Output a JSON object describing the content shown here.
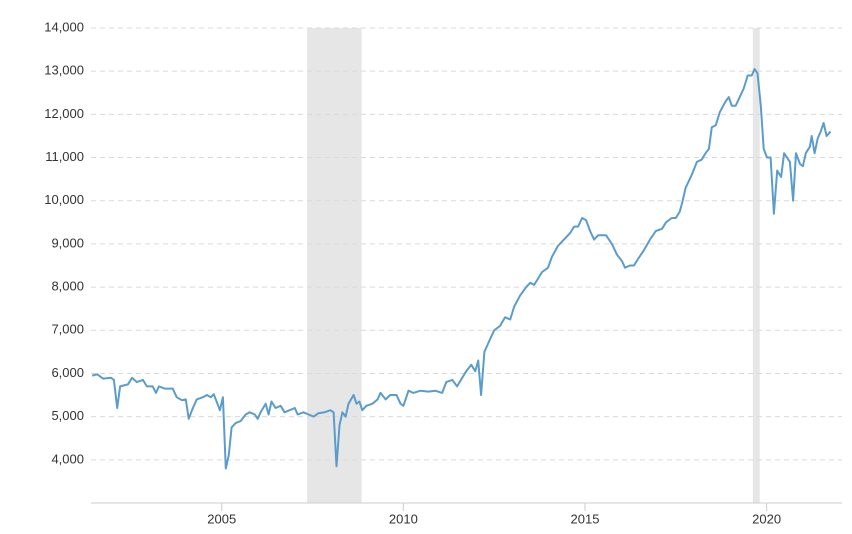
{
  "chart_data": {
    "type": "line",
    "xlim": [
      2001.4,
      2021.8
    ],
    "xticks": [
      2005,
      2010,
      2015,
      2020
    ],
    "ylim": [
      3000,
      14000
    ],
    "yticks": [
      {
        "value": 4000,
        "label": "4,000"
      },
      {
        "value": 5000,
        "label": "5,000"
      },
      {
        "value": 6000,
        "label": "6,000"
      },
      {
        "value": 7000,
        "label": "7,000"
      },
      {
        "value": 8000,
        "label": "8,000"
      },
      {
        "value": 9000,
        "label": "9,000"
      },
      {
        "value": 10000,
        "label": "10,000"
      },
      {
        "value": 11000,
        "label": "11,000"
      },
      {
        "value": 12000,
        "label": "12,000"
      },
      {
        "value": 13000,
        "label": "13,000"
      },
      {
        "value": 14000,
        "label": "14,000"
      }
    ],
    "grid": true,
    "shaded_ranges": [
      [
        2007.35,
        2008.85
      ],
      [
        2019.62,
        2019.81
      ]
    ],
    "shade_color": "#e6e6e6",
    "x": [
      2001.43,
      2001.57,
      2001.73,
      2001.95,
      2002.03,
      2002.12,
      2002.2,
      2002.42,
      2002.53,
      2002.66,
      2002.83,
      2002.94,
      2003.1,
      2003.19,
      2003.27,
      2003.43,
      2003.65,
      2003.76,
      2003.9,
      2004.01,
      2004.09,
      2004.18,
      2004.31,
      2004.48,
      2004.59,
      2004.7,
      2004.78,
      2004.95,
      2005.03,
      2005.11,
      2005.19,
      2005.27,
      2005.38,
      2005.52,
      2005.66,
      2005.77,
      2005.91,
      2005.99,
      2006.07,
      2006.21,
      2006.29,
      2006.37,
      2006.48,
      2006.62,
      2006.73,
      2006.87,
      2007.01,
      2007.09,
      2007.25,
      2007.39,
      2007.53,
      2007.66,
      2007.83,
      2007.99,
      2008.08,
      2008.16,
      2008.24,
      2008.32,
      2008.41,
      2008.49,
      2008.63,
      2008.71,
      2008.79,
      2008.87,
      2008.98,
      2009.15,
      2009.29,
      2009.37,
      2009.51,
      2009.64,
      2009.81,
      2009.92,
      2010.0,
      2010.14,
      2010.27,
      2010.47,
      2010.69,
      2010.88,
      2011.07,
      2011.18,
      2011.35,
      2011.48,
      2011.62,
      2011.73,
      2011.87,
      2011.98,
      2012.06,
      2012.14,
      2012.23,
      2012.39,
      2012.5,
      2012.66,
      2012.8,
      2012.94,
      2013.05,
      2013.21,
      2013.38,
      2013.49,
      2013.6,
      2013.71,
      2013.82,
      2013.98,
      2014.09,
      2014.25,
      2014.42,
      2014.59,
      2014.7,
      2014.81,
      2014.92,
      2015.03,
      2015.14,
      2015.25,
      2015.36,
      2015.58,
      2015.74,
      2015.88,
      2016.02,
      2016.1,
      2016.24,
      2016.35,
      2016.46,
      2016.62,
      2016.79,
      2016.95,
      2017.12,
      2017.23,
      2017.39,
      2017.5,
      2017.61,
      2017.69,
      2017.77,
      2017.94,
      2018.08,
      2018.21,
      2018.32,
      2018.41,
      2018.49,
      2018.6,
      2018.71,
      2018.87,
      2018.96,
      2019.04,
      2019.15,
      2019.26,
      2019.37,
      2019.48,
      2019.59,
      2019.67,
      2019.75,
      2019.84,
      2019.92,
      2020.01,
      2020.11,
      2020.2,
      2020.29,
      2020.4,
      2020.48,
      2020.56,
      2020.64,
      2020.73,
      2020.81,
      2020.92,
      2021.0,
      2021.08,
      2021.19,
      2021.24,
      2021.32,
      2021.41,
      2021.49,
      2021.57,
      2021.65,
      2021.76
    ],
    "series": [
      {
        "color": "#5b9ccb",
        "values": [
          5950,
          5980,
          5880,
          5900,
          5850,
          5200,
          5700,
          5750,
          5900,
          5800,
          5850,
          5700,
          5700,
          5550,
          5700,
          5650,
          5650,
          5450,
          5380,
          5400,
          4950,
          5150,
          5400,
          5450,
          5500,
          5450,
          5520,
          5150,
          5450,
          3800,
          4100,
          4750,
          4850,
          4900,
          5050,
          5100,
          5050,
          4950,
          5100,
          5300,
          5050,
          5350,
          5200,
          5250,
          5100,
          5150,
          5200,
          5050,
          5100,
          5050,
          5000,
          5080,
          5100,
          5150,
          5100,
          3850,
          4800,
          5100,
          5000,
          5300,
          5500,
          5300,
          5350,
          5150,
          5250,
          5300,
          5400,
          5550,
          5400,
          5500,
          5500,
          5300,
          5250,
          5600,
          5550,
          5600,
          5580,
          5600,
          5550,
          5800,
          5850,
          5700,
          5900,
          6050,
          6200,
          6050,
          6300,
          5500,
          6500,
          6800,
          7000,
          7100,
          7300,
          7250,
          7550,
          7800,
          8000,
          8100,
          8050,
          8200,
          8350,
          8450,
          8700,
          8950,
          9100,
          9250,
          9400,
          9400,
          9600,
          9550,
          9300,
          9100,
          9200,
          9200,
          9000,
          8750,
          8600,
          8450,
          8500,
          8500,
          8650,
          8850,
          9100,
          9300,
          9350,
          9500,
          9600,
          9600,
          9750,
          10000,
          10300,
          10600,
          10900,
          10950,
          11100,
          11200,
          11700,
          11750,
          12050,
          12300,
          12400,
          12200,
          12200,
          12400,
          12600,
          12900,
          12900,
          13050,
          12950,
          12200,
          11200,
          11000,
          11000,
          9700,
          10700,
          10550,
          11100,
          11000,
          10900,
          10000,
          11100,
          10850,
          10800,
          11100,
          11250,
          11500,
          11100,
          11450,
          11600,
          11800,
          11500,
          11600
        ]
      }
    ]
  }
}
